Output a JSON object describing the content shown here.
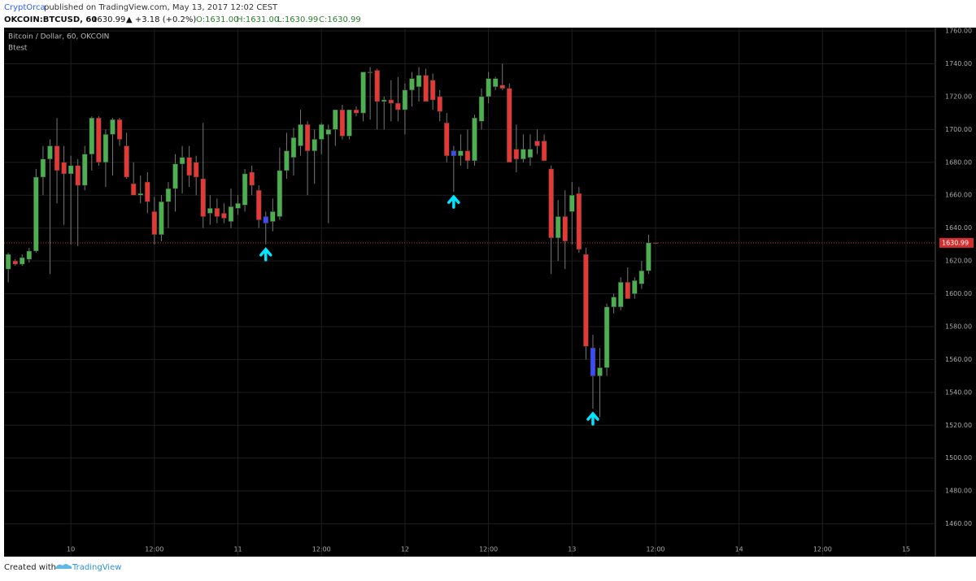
{
  "header": {
    "author": "CryptOrca",
    "published": "published on TradingView.com, May 13, 2017 12:02 CEST",
    "symbol": "OKCOIN:BTCUSD, 60",
    "last": "1630.99",
    "change": "▲ +3.18 (+0.2%)",
    "open": "O:1631.00",
    "high": "H:1631.00",
    "low": "L:1630.99",
    "close": "C:1630.99"
  },
  "chart_data": {
    "type": "candlestick",
    "title": "Bitcoin / Dollar, 60, OKCOIN",
    "indicator": "Btest",
    "x": [
      -9,
      -8,
      -7,
      -6,
      -5,
      -4,
      -3,
      -2,
      -1,
      0,
      1,
      2,
      3,
      4,
      5,
      6,
      7,
      8,
      9,
      10,
      11,
      12,
      13,
      14,
      15,
      16,
      17,
      18,
      19,
      20,
      21,
      22,
      23,
      24,
      25,
      26,
      27,
      28,
      29,
      30,
      31,
      32,
      33,
      34,
      35,
      36,
      37,
      38,
      39,
      40,
      41,
      42,
      43,
      44,
      45,
      46,
      47,
      48,
      49,
      50,
      51,
      52,
      53,
      54,
      55,
      56,
      57,
      58,
      59,
      60,
      61,
      62,
      63,
      64,
      65,
      66,
      67,
      68,
      69,
      70,
      71,
      72,
      73,
      74,
      75,
      76,
      77,
      78,
      79,
      80,
      81,
      82,
      83,
      84
    ],
    "open": [
      1615,
      1620,
      1618,
      1621,
      1626,
      1671,
      1682,
      1690,
      1680,
      1673,
      1678,
      1666,
      1685,
      1707,
      1680,
      1697,
      1706,
      1690,
      1667,
      1660,
      1668,
      1650,
      1636,
      1656,
      1664,
      1679,
      1683,
      1680,
      1670,
      1649,
      1652,
      1649,
      1644,
      1652,
      1654,
      1674,
      1663,
      1643,
      1644,
      1647,
      1675,
      1683,
      1690,
      1703,
      1687,
      1694,
      1697,
      1700,
      1712,
      1696,
      1712,
      1710,
      1735,
      1736,
      1717,
      1718,
      1716,
      1712,
      1724,
      1726,
      1733,
      1730,
      1720,
      1704,
      1684,
      1684,
      1687,
      1681,
      1705,
      1720,
      1726,
      1727,
      1725,
      1688,
      1682,
      1683,
      1693,
      1693,
      1676,
      1634,
      1647,
      1650,
      1661,
      1624,
      1567,
      1550,
      1555,
      1592,
      1592,
      1607,
      1600,
      1606,
      1614,
      1631
    ],
    "high": [
      1625,
      1621,
      1624,
      1628,
      1676,
      1690,
      1694,
      1707,
      1690,
      1684,
      1682,
      1690,
      1708,
      1708,
      1700,
      1707,
      1707,
      1698,
      1680,
      1672,
      1674,
      1659,
      1660,
      1668,
      1685,
      1690,
      1690,
      1684,
      1704,
      1660,
      1658,
      1655,
      1664,
      1660,
      1676,
      1678,
      1666,
      1650,
      1658,
      1689,
      1698,
      1701,
      1712,
      1705,
      1700,
      1704,
      1703,
      1712,
      1715,
      1712,
      1714,
      1735,
      1738,
      1737,
      1720,
      1730,
      1732,
      1728,
      1735,
      1738,
      1737,
      1734,
      1724,
      1710,
      1690,
      1697,
      1700,
      1709,
      1725,
      1735,
      1732,
      1740,
      1728,
      1703,
      1697,
      1697,
      1700,
      1697,
      1678,
      1657,
      1663,
      1668,
      1665,
      1628,
      1575,
      1567,
      1594,
      1600,
      1610,
      1616,
      1610,
      1620,
      1636,
      1631
    ],
    "low": [
      1607,
      1617,
      1617,
      1619,
      1625,
      1660,
      1612,
      1655,
      1642,
      1630,
      1629,
      1663,
      1675,
      1678,
      1665,
      1672,
      1690,
      1670,
      1660,
      1655,
      1649,
      1630,
      1632,
      1640,
      1650,
      1661,
      1665,
      1660,
      1640,
      1642,
      1643,
      1643,
      1640,
      1648,
      1650,
      1660,
      1640,
      1630,
      1638,
      1645,
      1670,
      1672,
      1684,
      1660,
      1667,
      1685,
      1643,
      1690,
      1694,
      1694,
      1708,
      1705,
      1706,
      1700,
      1700,
      1705,
      1705,
      1697,
      1714,
      1717,
      1718,
      1712,
      1705,
      1680,
      1662,
      1678,
      1676,
      1678,
      1700,
      1716,
      1724,
      1724,
      1680,
      1674,
      1680,
      1678,
      1685,
      1681,
      1612,
      1620,
      1615,
      1630,
      1625,
      1560,
      1530,
      1525,
      1550,
      1588,
      1590,
      1597,
      1597,
      1603,
      1612,
      1630.99
    ],
    "close": [
      1624,
      1618,
      1622,
      1626,
      1671,
      1682,
      1690,
      1675,
      1673,
      1678,
      1666,
      1685,
      1707,
      1680,
      1697,
      1706,
      1694,
      1671,
      1660,
      1661,
      1656,
      1636,
      1656,
      1664,
      1679,
      1683,
      1672,
      1671,
      1647,
      1652,
      1647,
      1646,
      1653,
      1655,
      1673,
      1666,
      1645,
      1647,
      1650,
      1675,
      1687,
      1695,
      1703,
      1687,
      1694,
      1703,
      1700,
      1712,
      1696,
      1712,
      1710,
      1735,
      1735,
      1717,
      1718,
      1716,
      1712,
      1724,
      1731,
      1733,
      1717,
      1718,
      1711,
      1684,
      1687,
      1687,
      1681,
      1707,
      1720,
      1731,
      1731,
      1725,
      1680,
      1682,
      1688,
      1688,
      1690,
      1681,
      1634,
      1647,
      1632,
      1660,
      1627,
      1568,
      1550,
      1555,
      1592,
      1598,
      1607,
      1597,
      1608,
      1614,
      1631,
      1630.99
    ],
    "up_color": "#4caf50",
    "down_color": "#e53935",
    "signal_color": "#3d4cf5",
    "arrow_color": "#00e5ff",
    "signals": [
      28,
      55,
      75
    ],
    "last_price": 1630.99,
    "last_price_color": "#d32f2f",
    "xlim": [
      -9.6,
      124.2
    ],
    "ylim": [
      1440,
      1762
    ],
    "xticks": [
      {
        "value": 0,
        "label": "10"
      },
      {
        "value": 12,
        "label": "12:00"
      },
      {
        "value": 24,
        "label": "11"
      },
      {
        "value": 36,
        "label": "12:00"
      },
      {
        "value": 48,
        "label": "12"
      },
      {
        "value": 60,
        "label": "12:00"
      },
      {
        "value": 72,
        "label": "13"
      },
      {
        "value": 84,
        "label": "12:00"
      },
      {
        "value": 96,
        "label": "14"
      },
      {
        "value": 108,
        "label": "12:00"
      },
      {
        "value": 120,
        "label": "15"
      }
    ],
    "yticks": [
      {
        "value": 1460,
        "label": "1460.00"
      },
      {
        "value": 1480,
        "label": "1480.00"
      },
      {
        "value": 1500,
        "label": "1500.00"
      },
      {
        "value": 1520,
        "label": "1520.00"
      },
      {
        "value": 1540,
        "label": "1540.00"
      },
      {
        "value": 1560,
        "label": "1560.00"
      },
      {
        "value": 1580,
        "label": "1580.00"
      },
      {
        "value": 1600,
        "label": "1600.00"
      },
      {
        "value": 1620,
        "label": "1620.00"
      },
      {
        "value": 1640,
        "label": "1640.00"
      },
      {
        "value": 1660,
        "label": "1660.00"
      },
      {
        "value": 1680,
        "label": "1680.00"
      },
      {
        "value": 1700,
        "label": "1700.00"
      },
      {
        "value": 1720,
        "label": "1720.00"
      },
      {
        "value": 1740,
        "label": "1740.00"
      },
      {
        "value": 1760,
        "label": "1760.00"
      }
    ],
    "grid": true
  },
  "footer": {
    "created": "Created with",
    "brand": "TradingView"
  }
}
